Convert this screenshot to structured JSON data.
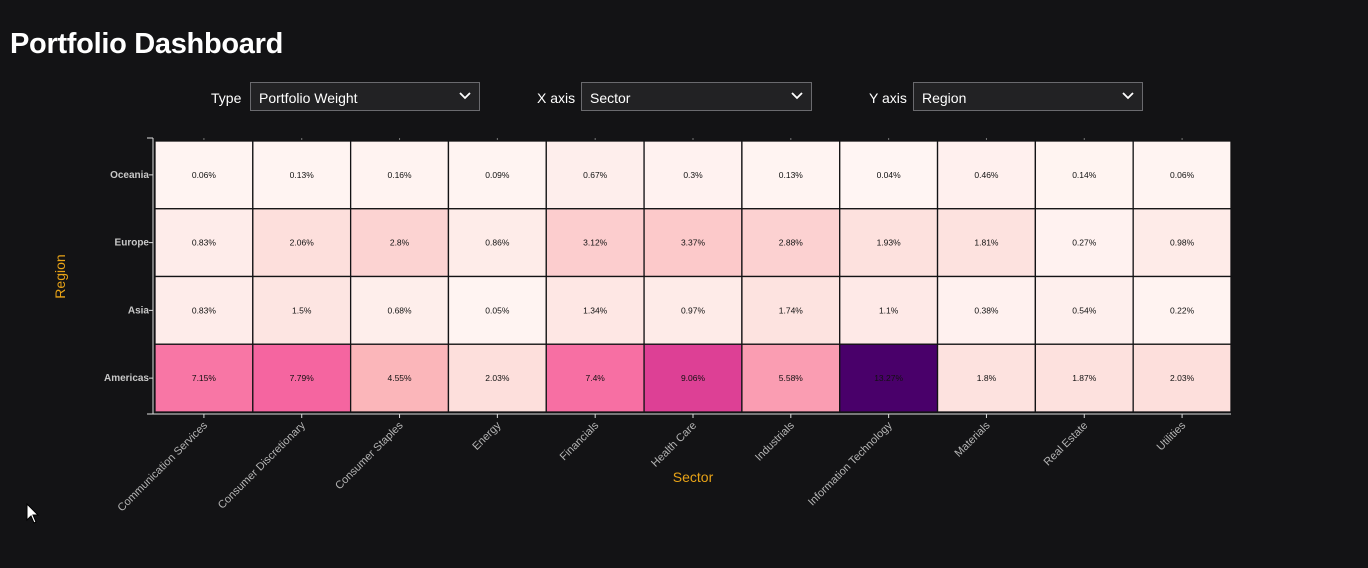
{
  "page": {
    "title": "Portfolio Dashboard"
  },
  "controls": {
    "type": {
      "label": "Type",
      "value": "Portfolio Weight"
    },
    "x_axis": {
      "label": "X axis",
      "value": "Sector"
    },
    "y_axis": {
      "label": "Y axis",
      "value": "Region"
    }
  },
  "icons": {
    "dropdown": "chevron-down-icon",
    "cursor": "mouse-pointer-icon"
  },
  "colors": {
    "background": "#131315",
    "axis_title": "#e8a317",
    "scale_low": "#fff5f3",
    "scale_mid": "#f768a1",
    "scale_high": "#49006a"
  },
  "chart_data": {
    "type": "heatmap",
    "xlabel": "Sector",
    "ylabel": "Region",
    "x_categories": [
      "Communication Services",
      "Consumer Discretionary",
      "Consumer Staples",
      "Energy",
      "Financials",
      "Health Care",
      "Industrials",
      "Information Technology",
      "Materials",
      "Real Estate",
      "Utilities"
    ],
    "y_categories": [
      "Oceania",
      "Europe",
      "Asia",
      "Americas"
    ],
    "values": [
      [
        0.06,
        0.13,
        0.16,
        0.09,
        0.67,
        0.3,
        0.13,
        0.04,
        0.46,
        0.14,
        0.06
      ],
      [
        0.83,
        2.06,
        2.8,
        0.86,
        3.12,
        3.37,
        2.88,
        1.93,
        1.81,
        0.27,
        0.98
      ],
      [
        0.83,
        1.5,
        0.68,
        0.05,
        1.34,
        0.97,
        1.74,
        1.1,
        0.38,
        0.54,
        0.22
      ],
      [
        7.15,
        7.79,
        4.55,
        2.03,
        7.4,
        9.06,
        5.58,
        13.27,
        1.8,
        1.87,
        2.03
      ]
    ],
    "cell_labels": [
      [
        "0.06%",
        "0.13%",
        "0.16%",
        "0.09%",
        "0.67%",
        "0.3%",
        "0.13%",
        "0.04%",
        "0.46%",
        "0.14%",
        "0.06%"
      ],
      [
        "0.83%",
        "2.06%",
        "2.8%",
        "0.86%",
        "3.12%",
        "3.37%",
        "2.88%",
        "1.93%",
        "1.81%",
        "0.27%",
        "0.98%"
      ],
      [
        "0.83%",
        "1.5%",
        "0.68%",
        "0.05%",
        "1.34%",
        "0.97%",
        "1.74%",
        "1.1%",
        "0.38%",
        "0.54%",
        "0.22%"
      ],
      [
        "7.15%",
        "7.79%",
        "4.55%",
        "2.03%",
        "7.4%",
        "9.06%",
        "5.58%",
        "13.27%",
        "1.8%",
        "1.87%",
        "2.03%"
      ]
    ],
    "unit": "%"
  }
}
